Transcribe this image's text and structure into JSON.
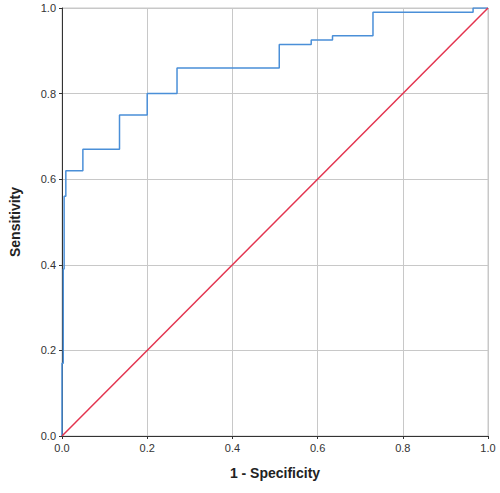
{
  "chart_data": {
    "type": "line",
    "x_label": "1 - Specificity",
    "y_label": "Sensitivity",
    "xlim": [
      0,
      1
    ],
    "ylim": [
      0,
      1
    ],
    "xticks": [
      {
        "value": 0,
        "label": "0.0"
      },
      {
        "value": 0.2,
        "label": "0.2"
      },
      {
        "value": 0.4,
        "label": "0.4"
      },
      {
        "value": 0.6,
        "label": "0.6"
      },
      {
        "value": 0.8,
        "label": "0.8"
      },
      {
        "value": 1,
        "label": "1.0"
      }
    ],
    "yticks": [
      {
        "value": 0,
        "label": "0.0"
      },
      {
        "value": 0.2,
        "label": "0.2"
      },
      {
        "value": 0.4,
        "label": "0.4"
      },
      {
        "value": 0.6,
        "label": "0.6"
      },
      {
        "value": 0.8,
        "label": "0.8"
      },
      {
        "value": 1,
        "label": "1.0"
      }
    ],
    "grid": true,
    "series": [
      {
        "color": "#4a8fd8",
        "x": [
          0,
          0,
          0.003,
          0.003,
          0.005,
          0.005,
          0.009,
          0.009,
          0.049,
          0.049,
          0.135,
          0.135,
          0.2,
          0.2,
          0.27,
          0.27,
          0.51,
          0.51,
          0.585,
          0.585,
          0.635,
          0.635,
          0.73,
          0.73,
          0.965,
          0.965,
          1
        ],
        "values": [
          0,
          0.17,
          0.17,
          0.39,
          0.39,
          0.56,
          0.56,
          0.62,
          0.62,
          0.67,
          0.67,
          0.75,
          0.75,
          0.8,
          0.8,
          0.86,
          0.86,
          0.915,
          0.915,
          0.925,
          0.925,
          0.935,
          0.935,
          0.99,
          0.99,
          1,
          1
        ]
      },
      {
        "color": "#e3344f",
        "x": [
          0,
          1
        ],
        "values": [
          0,
          1
        ]
      }
    ]
  }
}
